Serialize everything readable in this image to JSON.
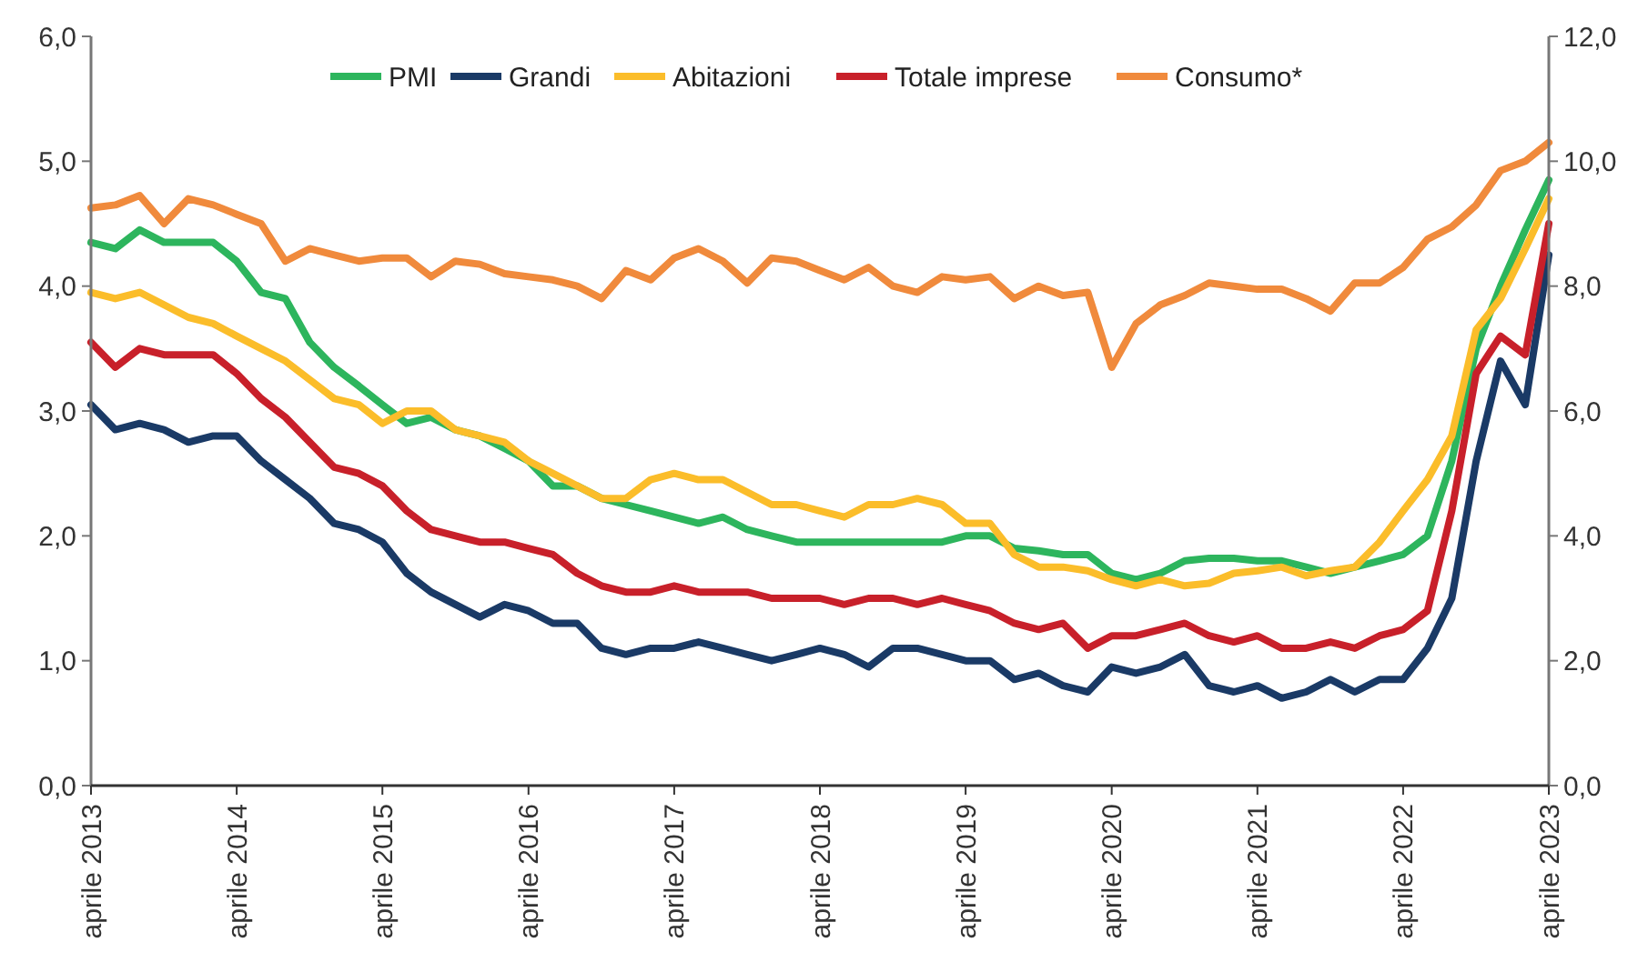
{
  "chart_data": {
    "type": "line",
    "x": [
      "2013-04",
      "2013-06",
      "2013-08",
      "2013-10",
      "2013-12",
      "2014-02",
      "2014-04",
      "2014-06",
      "2014-08",
      "2014-10",
      "2014-12",
      "2015-02",
      "2015-04",
      "2015-06",
      "2015-08",
      "2015-10",
      "2015-12",
      "2016-02",
      "2016-04",
      "2016-06",
      "2016-08",
      "2016-10",
      "2016-12",
      "2017-02",
      "2017-04",
      "2017-06",
      "2017-08",
      "2017-10",
      "2017-12",
      "2018-02",
      "2018-04",
      "2018-06",
      "2018-08",
      "2018-10",
      "2018-12",
      "2019-02",
      "2019-04",
      "2019-06",
      "2019-08",
      "2019-10",
      "2019-12",
      "2020-02",
      "2020-04",
      "2020-06",
      "2020-08",
      "2020-10",
      "2020-12",
      "2021-02",
      "2021-04",
      "2021-06",
      "2021-08",
      "2021-10",
      "2021-12",
      "2022-02",
      "2022-04",
      "2022-06",
      "2022-08",
      "2022-10",
      "2022-12",
      "2023-02",
      "2023-04"
    ],
    "series": [
      {
        "name": "PMI",
        "color": "#2db55d",
        "values": [
          4.35,
          4.3,
          4.45,
          4.35,
          4.35,
          4.35,
          4.2,
          3.95,
          3.9,
          3.55,
          3.35,
          3.2,
          3.05,
          2.9,
          2.95,
          2.85,
          2.8,
          2.7,
          2.6,
          2.4,
          2.4,
          2.3,
          2.25,
          2.2,
          2.15,
          2.1,
          2.15,
          2.05,
          2.0,
          1.95,
          1.95,
          1.95,
          1.95,
          1.95,
          1.95,
          1.95,
          2.0,
          2.0,
          1.9,
          1.88,
          1.85,
          1.85,
          1.7,
          1.65,
          1.7,
          1.8,
          1.82,
          1.82,
          1.8,
          1.8,
          1.75,
          1.7,
          1.75,
          1.8,
          1.85,
          2.0,
          2.6,
          3.5,
          4.0,
          4.45,
          4.85
        ]
      },
      {
        "name": "Grandi",
        "color": "#1a3a66",
        "values": [
          3.05,
          2.85,
          2.9,
          2.85,
          2.75,
          2.8,
          2.8,
          2.6,
          2.45,
          2.3,
          2.1,
          2.05,
          1.95,
          1.7,
          1.55,
          1.45,
          1.35,
          1.45,
          1.4,
          1.3,
          1.3,
          1.1,
          1.05,
          1.1,
          1.1,
          1.15,
          1.1,
          1.05,
          1.0,
          1.05,
          1.1,
          1.05,
          0.95,
          1.1,
          1.1,
          1.05,
          1.0,
          1.0,
          0.85,
          0.9,
          0.8,
          0.75,
          0.95,
          0.9,
          0.95,
          1.05,
          0.8,
          0.75,
          0.8,
          0.7,
          0.75,
          0.85,
          0.75,
          0.85,
          0.85,
          1.1,
          1.5,
          2.6,
          3.4,
          3.05,
          4.25
        ]
      },
      {
        "name": "Abitazioni",
        "color": "#fbbd2a",
        "values": [
          3.95,
          3.9,
          3.95,
          3.85,
          3.75,
          3.7,
          3.6,
          3.5,
          3.4,
          3.25,
          3.1,
          3.05,
          2.9,
          3.0,
          3.0,
          2.85,
          2.8,
          2.75,
          2.6,
          2.5,
          2.4,
          2.3,
          2.3,
          2.45,
          2.5,
          2.45,
          2.45,
          2.35,
          2.25,
          2.25,
          2.2,
          2.15,
          2.25,
          2.25,
          2.3,
          2.25,
          2.1,
          2.1,
          1.85,
          1.75,
          1.75,
          1.72,
          1.65,
          1.6,
          1.65,
          1.6,
          1.62,
          1.7,
          1.72,
          1.75,
          1.68,
          1.72,
          1.75,
          1.95,
          2.2,
          2.45,
          2.8,
          3.65,
          3.9,
          4.3,
          4.7
        ]
      },
      {
        "name": "Totale imprese",
        "color": "#c8202a",
        "values": [
          3.55,
          3.35,
          3.5,
          3.45,
          3.45,
          3.45,
          3.3,
          3.1,
          2.95,
          2.75,
          2.55,
          2.5,
          2.4,
          2.2,
          2.05,
          2.0,
          1.95,
          1.95,
          1.9,
          1.85,
          1.7,
          1.6,
          1.55,
          1.55,
          1.6,
          1.55,
          1.55,
          1.55,
          1.5,
          1.5,
          1.5,
          1.45,
          1.5,
          1.5,
          1.45,
          1.5,
          1.45,
          1.4,
          1.3,
          1.25,
          1.3,
          1.1,
          1.2,
          1.2,
          1.25,
          1.3,
          1.2,
          1.15,
          1.2,
          1.1,
          1.1,
          1.15,
          1.1,
          1.2,
          1.25,
          1.4,
          2.2,
          3.3,
          3.6,
          3.45,
          4.5
        ]
      },
      {
        "name": "Consumo*",
        "color": "#f08a3c",
        "axis": "y2",
        "values": [
          9.25,
          9.3,
          9.45,
          9.0,
          9.4,
          9.3,
          9.15,
          9.0,
          8.4,
          8.6,
          8.5,
          8.4,
          8.45,
          8.45,
          8.15,
          8.4,
          8.35,
          8.2,
          8.15,
          8.1,
          8.0,
          7.8,
          8.25,
          8.1,
          8.45,
          8.6,
          8.4,
          8.05,
          8.45,
          8.4,
          8.25,
          8.1,
          8.3,
          8.0,
          7.9,
          8.15,
          8.1,
          8.15,
          7.8,
          8.0,
          7.85,
          7.9,
          6.7,
          7.4,
          7.7,
          7.85,
          8.05,
          8.0,
          7.95,
          7.95,
          7.8,
          7.6,
          8.05,
          8.05,
          8.3,
          8.75,
          8.95,
          9.3,
          9.85,
          10.0,
          10.3
        ]
      }
    ],
    "xlim": [
      "2013-04",
      "2023-04"
    ],
    "xticks": [
      {
        "value": "2013-04",
        "label": "aprile 2013"
      },
      {
        "value": "2014-04",
        "label": "aprile 2014"
      },
      {
        "value": "2015-04",
        "label": "aprile 2015"
      },
      {
        "value": "2016-04",
        "label": "aprile 2016"
      },
      {
        "value": "2017-04",
        "label": "aprile 2017"
      },
      {
        "value": "2018-04",
        "label": "aprile 2018"
      },
      {
        "value": "2019-04",
        "label": "aprile 2019"
      },
      {
        "value": "2020-04",
        "label": "aprile 2020"
      },
      {
        "value": "2021-04",
        "label": "aprile 2021"
      },
      {
        "value": "2022-04",
        "label": "aprile 2022"
      },
      {
        "value": "2023-04",
        "label": "aprile 2023"
      }
    ],
    "ylim": [
      0,
      6
    ],
    "yticks": [
      {
        "value": 0,
        "label": "0,0"
      },
      {
        "value": 1,
        "label": "1,0"
      },
      {
        "value": 2,
        "label": "2,0"
      },
      {
        "value": 3,
        "label": "3,0"
      },
      {
        "value": 4,
        "label": "4,0"
      },
      {
        "value": 5,
        "label": "5,0"
      },
      {
        "value": 6,
        "label": "6,0"
      }
    ],
    "y2lim": [
      0,
      12
    ],
    "y2ticks": [
      {
        "value": 0,
        "label": "0,0"
      },
      {
        "value": 2,
        "label": "2,0"
      },
      {
        "value": 4,
        "label": "4,0"
      },
      {
        "value": 6,
        "label": "6,0"
      },
      {
        "value": 8,
        "label": "8,0"
      },
      {
        "value": 10,
        "label": "10,0"
      },
      {
        "value": 12,
        "label": "12,0"
      }
    ],
    "legend": "top",
    "grid": false,
    "marker": "none",
    "line_style": "solid"
  }
}
